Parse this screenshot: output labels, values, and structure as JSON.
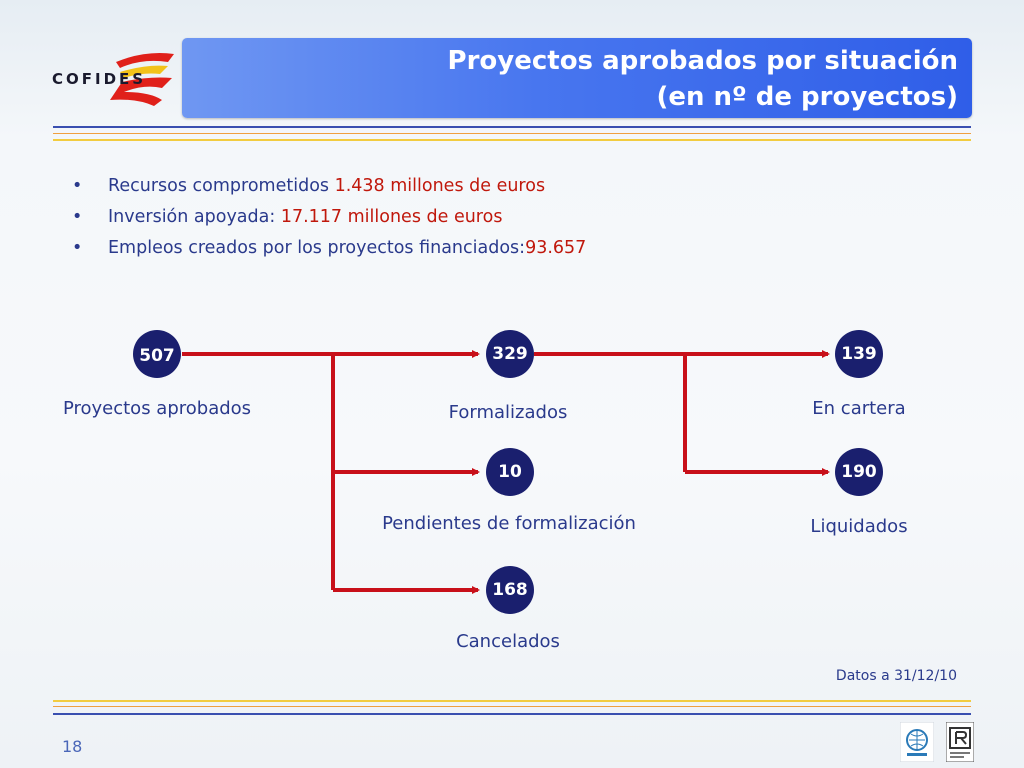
{
  "header": {
    "logo_text": "COFIDES",
    "title_line1": "Proyectos aprobados por situación",
    "title_line2": "(en nº de proyectos)"
  },
  "bullets": [
    {
      "text": "Recursos comprometidos ",
      "value": "1.438 millones de euros"
    },
    {
      "text": "Inversión apoyada: ",
      "value": "17.117 millones de euros"
    },
    {
      "text": "Empleos creados por los proyectos financiados:",
      "value": "93.657"
    }
  ],
  "nodes": {
    "aprobados": {
      "value": "507",
      "label": "Proyectos aprobados"
    },
    "formalizados": {
      "value": "329",
      "label": "Formalizados"
    },
    "pendientes": {
      "value": "10",
      "label": "Pendientes de formalización"
    },
    "cancelados": {
      "value": "168",
      "label": "Cancelados"
    },
    "cartera": {
      "value": "139",
      "label": "En cartera"
    },
    "liquidados": {
      "value": "190",
      "label": "Liquidados"
    }
  },
  "footer": {
    "date_note": "Datos a 31/12/10",
    "page_number": "18"
  },
  "colors": {
    "title_bg": "#4876ef",
    "node_fill": "#1a1f6e",
    "arrow": "#c8101a",
    "text": "#2a3a8c",
    "highlight": "#c0180c"
  }
}
